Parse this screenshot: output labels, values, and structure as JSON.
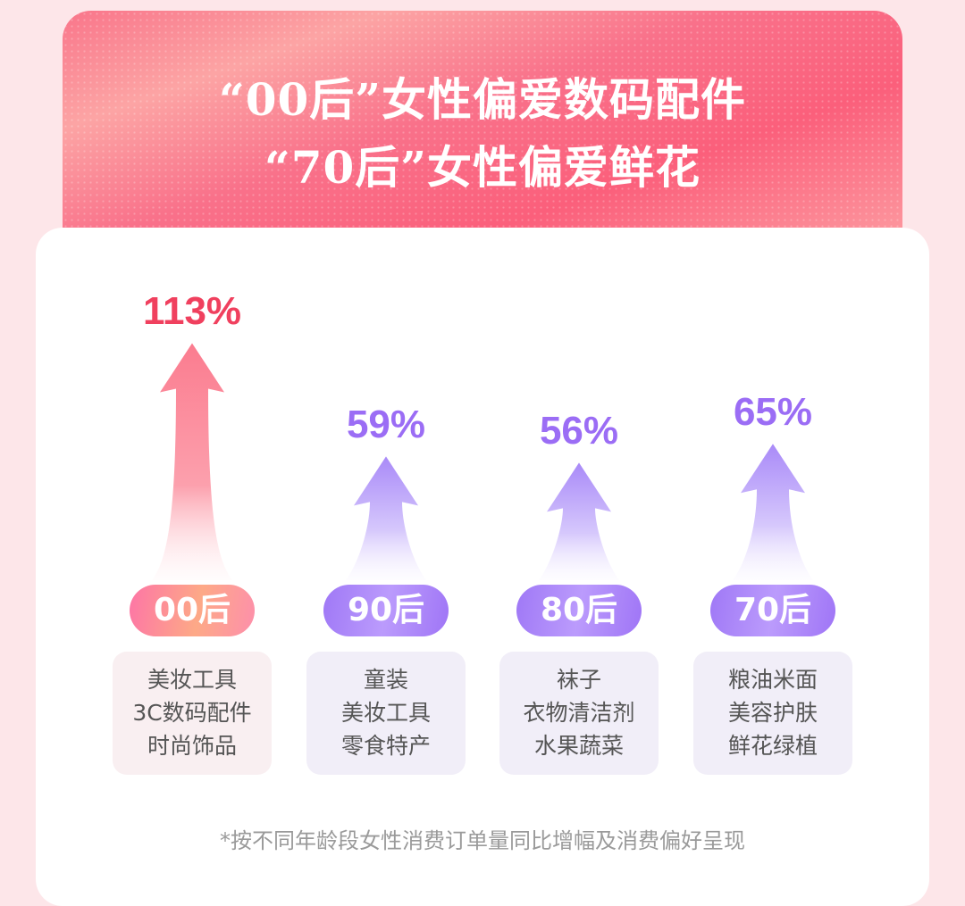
{
  "header": {
    "title_line1": "“00后”女性偏爱数码配件",
    "title_line2": "“70后”女性偏爱鲜花"
  },
  "chart_data": {
    "type": "bar",
    "categories": [
      "00后",
      "90后",
      "80后",
      "70后"
    ],
    "values": [
      113,
      59,
      56,
      65
    ],
    "value_labels": [
      "113%",
      "59%",
      "56%",
      "65%"
    ],
    "unit": "%",
    "colors": {
      "highlight": "#f0405e",
      "default": "#9b6df5"
    }
  },
  "groups": [
    {
      "label": "00后",
      "value_label": "113%",
      "items": [
        "美妆工具",
        "3C数码配件",
        "时尚饰品"
      ]
    },
    {
      "label": "90后",
      "value_label": "59%",
      "items": [
        "童装",
        "美妆工具",
        "零食特产"
      ]
    },
    {
      "label": "80后",
      "value_label": "56%",
      "items": [
        "袜子",
        "衣物清洁剂",
        "水果蔬菜"
      ]
    },
    {
      "label": "70后",
      "value_label": "65%",
      "items": [
        "粮油米面",
        "美容护肤",
        "鲜花绿植"
      ]
    }
  ],
  "footnote": "*按不同年龄段女性消费订单量同比增幅及消费偏好呈现"
}
